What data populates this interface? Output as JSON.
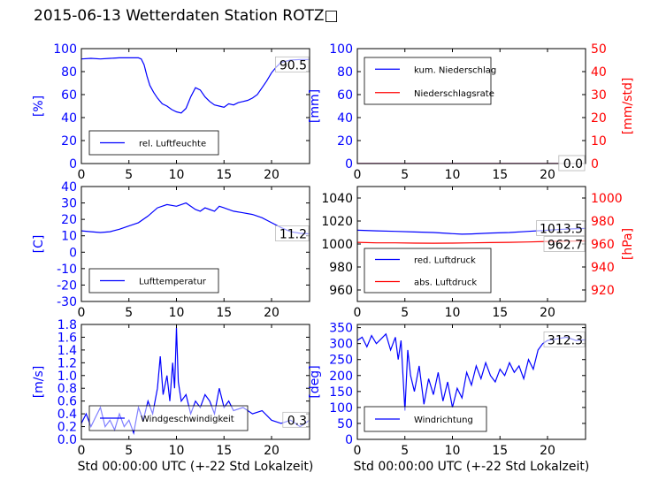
{
  "title": "2015-06-13 Wetterdaten Station ROTZ□",
  "chart_data": [
    {
      "type": "line",
      "id": "humidity",
      "ylabel": "[%]",
      "ylim": [
        0,
        100
      ],
      "yticks": [
        0,
        20,
        40,
        60,
        80,
        100
      ],
      "xlim": [
        0,
        24
      ],
      "xticks": [
        0,
        5,
        10,
        15,
        20
      ],
      "current_label": "90.5",
      "legend_placement": "lower-left",
      "series": [
        {
          "name": "rel. Luftfeuchte",
          "color": "#0000ff",
          "x": [
            0,
            1,
            2,
            3,
            4,
            5,
            6,
            6.3,
            6.6,
            6.9,
            7.2,
            7.6,
            8,
            8.5,
            9,
            9.5,
            10,
            10.5,
            11,
            11.5,
            12,
            12.5,
            13,
            13.5,
            14,
            14.5,
            15,
            15.5,
            16,
            16.5,
            17,
            17.5,
            18,
            18.5,
            19,
            19.5,
            20,
            20.5,
            21,
            22,
            23,
            24
          ],
          "y": [
            91,
            91.5,
            91,
            91.5,
            92,
            92,
            92,
            91,
            86,
            76,
            68,
            62,
            57,
            52,
            50,
            47,
            45,
            44,
            48,
            58,
            66,
            64,
            58,
            54,
            51,
            50,
            49,
            52,
            51,
            53,
            54,
            55,
            57,
            60,
            66,
            72,
            79,
            84,
            88,
            90,
            90.5,
            90.5
          ]
        }
      ]
    },
    {
      "type": "line",
      "id": "precipitation",
      "ylabel": "[mm]",
      "ylabel_right": "[mm/std]",
      "ylim": [
        0,
        100
      ],
      "yticks": [
        0,
        20,
        40,
        60,
        80,
        100
      ],
      "ylim_right": [
        0,
        50
      ],
      "yticks_right": [
        0,
        10,
        20,
        30,
        40,
        50
      ],
      "xlim": [
        0,
        24
      ],
      "xticks": [
        0,
        5,
        10,
        15,
        20
      ],
      "current_label": "0.0",
      "current_label_right": "0.0",
      "legend_placement": "upper-left",
      "series": [
        {
          "name": "kum. Niederschlag",
          "color": "#0000ff",
          "axis": "left",
          "x": [
            0,
            24
          ],
          "y": [
            0,
            0
          ]
        },
        {
          "name": "Niederschlagsrate",
          "color": "#ff0000",
          "axis": "right",
          "x": [
            0,
            24
          ],
          "y": [
            0,
            0
          ]
        }
      ]
    },
    {
      "type": "line",
      "id": "temperature",
      "ylabel": "[C]",
      "ylim": [
        -30,
        40
      ],
      "yticks": [
        -30,
        -20,
        -10,
        0,
        10,
        20,
        30,
        40
      ],
      "xlim": [
        0,
        24
      ],
      "xticks": [
        0,
        5,
        10,
        15,
        20
      ],
      "current_label": "11.2",
      "legend_placement": "lower-left",
      "series": [
        {
          "name": "Lufttemperatur",
          "color": "#0000ff",
          "x": [
            0,
            1,
            2,
            3,
            4,
            5,
            6,
            7,
            8,
            9,
            10,
            10.5,
            11,
            11.5,
            12,
            12.5,
            13,
            13.5,
            14,
            14.5,
            15,
            16,
            17,
            18,
            19,
            20,
            21,
            22,
            23,
            24
          ],
          "y": [
            13,
            12.5,
            12,
            12.5,
            14,
            16,
            18,
            22,
            27,
            29,
            28,
            29,
            30,
            28,
            26,
            25,
            27,
            26,
            25,
            28,
            27,
            25,
            24,
            23,
            21,
            18,
            15,
            12.5,
            11.5,
            11.2
          ]
        }
      ]
    },
    {
      "type": "line",
      "id": "pressure",
      "ylabel_right": "[hPa]",
      "ylim": [
        950,
        1050
      ],
      "yticks": [
        960,
        980,
        1000,
        1020,
        1040
      ],
      "ylim_right": [
        910,
        1010
      ],
      "yticks_right": [
        920,
        940,
        960,
        980,
        1000
      ],
      "xlim": [
        0,
        24
      ],
      "xticks": [
        0,
        5,
        10,
        15,
        20
      ],
      "current_label": "1013.5",
      "current_label_right": "962.7",
      "legend_placement": "lower-left",
      "series": [
        {
          "name": "red. Luftdruck",
          "color": "#0000ff",
          "axis": "left",
          "x": [
            0,
            2,
            4,
            6,
            8,
            10,
            11,
            12,
            14,
            16,
            18,
            20,
            22,
            24
          ],
          "y": [
            1012,
            1011.5,
            1011,
            1010.5,
            1010,
            1009,
            1008.5,
            1008.8,
            1009.5,
            1010,
            1011,
            1012,
            1013,
            1013.5
          ]
        },
        {
          "name": "abs. Luftdruck",
          "color": "#ff0000",
          "axis": "right",
          "x": [
            0,
            2,
            4,
            6,
            8,
            10,
            12,
            14,
            16,
            18,
            20,
            22,
            24
          ],
          "y": [
            961.5,
            961,
            961,
            960.8,
            960.7,
            960.8,
            961,
            961.2,
            961.5,
            961.8,
            962.2,
            962.5,
            962.7
          ]
        }
      ]
    },
    {
      "type": "line",
      "id": "windspeed",
      "xlabel": "Std 00:00:00 UTC (+-22 Std Lokalzeit)",
      "ylabel": "[m/s]",
      "ylim": [
        0,
        1.8
      ],
      "yticks": [
        0.0,
        0.2,
        0.4,
        0.6,
        0.8,
        1.0,
        1.2,
        1.4,
        1.6,
        1.8
      ],
      "xlim": [
        0,
        24
      ],
      "xticks": [
        0,
        5,
        10,
        15,
        20
      ],
      "current_label": "0.3",
      "legend_placement": "lower-center",
      "series": [
        {
          "name": "Windgeschwindigkeit",
          "color": "#0000ff",
          "x": [
            0,
            0.5,
            1,
            1.5,
            2,
            2.5,
            3,
            3.5,
            4,
            4.5,
            5,
            5.5,
            6,
            6.5,
            7,
            7.5,
            8,
            8.3,
            8.6,
            9,
            9.3,
            9.6,
            9.8,
            10,
            10.2,
            10.5,
            11,
            11.5,
            12,
            12.5,
            13,
            13.5,
            14,
            14.5,
            15,
            15.5,
            16,
            17,
            18,
            19,
            20,
            21,
            22,
            23,
            24
          ],
          "y": [
            0.25,
            0.4,
            0.2,
            0.35,
            0.5,
            0.2,
            0.3,
            0.15,
            0.4,
            0.2,
            0.3,
            0.1,
            0.5,
            0.3,
            0.6,
            0.4,
            0.8,
            1.3,
            0.7,
            1.0,
            0.6,
            1.2,
            0.8,
            1.75,
            0.9,
            0.6,
            0.7,
            0.4,
            0.6,
            0.5,
            0.7,
            0.6,
            0.4,
            0.8,
            0.5,
            0.6,
            0.45,
            0.5,
            0.4,
            0.45,
            0.3,
            0.25,
            0.3,
            0.2,
            0.3
          ]
        }
      ]
    },
    {
      "type": "line",
      "id": "winddirection",
      "xlabel": "Std 00:00:00 UTC (+-22 Std Lokalzeit)",
      "ylabel": "[deg]",
      "ylim": [
        0,
        360
      ],
      "yticks": [
        0,
        50,
        100,
        150,
        200,
        250,
        300,
        350
      ],
      "xlim": [
        0,
        24
      ],
      "xticks": [
        0,
        5,
        10,
        15,
        20
      ],
      "current_label": "312.3",
      "legend_placement": "lower-left",
      "series": [
        {
          "name": "Windrichtung",
          "color": "#0000ff",
          "x": [
            0,
            0.5,
            1,
            1.5,
            2,
            2.5,
            3,
            3.5,
            4,
            4.3,
            4.6,
            5,
            5.3,
            5.6,
            6,
            6.5,
            7,
            7.5,
            8,
            8.5,
            9,
            9.5,
            10,
            10.5,
            11,
            11.5,
            12,
            12.5,
            13,
            13.5,
            14,
            14.5,
            15,
            15.5,
            16,
            16.5,
            17,
            17.5,
            18,
            18.5,
            19,
            19.5,
            20,
            21,
            22,
            23,
            24
          ],
          "y": [
            310,
            320,
            290,
            325,
            300,
            315,
            330,
            280,
            320,
            250,
            310,
            90,
            280,
            200,
            150,
            230,
            110,
            190,
            140,
            210,
            120,
            180,
            100,
            160,
            130,
            210,
            170,
            230,
            190,
            240,
            200,
            180,
            220,
            200,
            240,
            210,
            230,
            190,
            250,
            220,
            280,
            300,
            310,
            315,
            320,
            310,
            312
          ]
        }
      ]
    }
  ]
}
